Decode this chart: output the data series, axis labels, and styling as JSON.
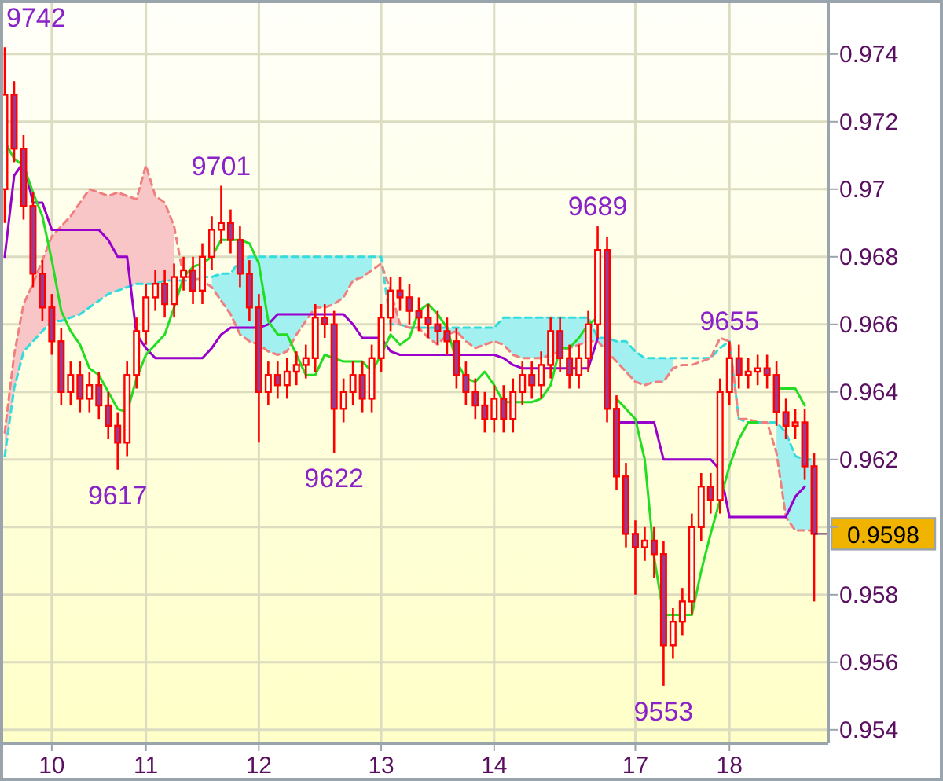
{
  "chart_data": {
    "type": "candlestick",
    "grid": true,
    "categories": [
      null,
      null,
      null,
      null,
      null,
      "10",
      null,
      null,
      null,
      null,
      null,
      null,
      null,
      null,
      null,
      "11",
      null,
      null,
      null,
      null,
      null,
      null,
      null,
      null,
      null,
      null,
      null,
      "12",
      null,
      null,
      null,
      null,
      null,
      null,
      null,
      null,
      null,
      null,
      null,
      null,
      "13",
      null,
      null,
      null,
      null,
      null,
      null,
      null,
      null,
      null,
      null,
      null,
      "14",
      null,
      null,
      null,
      null,
      null,
      null,
      null,
      null,
      null,
      null,
      null,
      null,
      null,
      null,
      "17",
      null,
      null,
      null,
      null,
      null,
      null,
      null,
      null,
      null,
      "18",
      null,
      null,
      null,
      null,
      null,
      null,
      null,
      null,
      null
    ],
    "ylim": [
      0.9536,
      0.9756
    ],
    "yticks": [
      0.954,
      0.956,
      0.958,
      {
        "value": 0.96,
        "label": null
      },
      0.962,
      0.964,
      0.966,
      0.968,
      0.97,
      0.972,
      0.974
    ],
    "annotations": [
      "9742",
      {
        "text": "9701",
        "y": 0.9701
      },
      {
        "text": "9617",
        "y": 0.9617
      },
      {
        "text": "9622",
        "y": 0.9622
      },
      {
        "text": "9689",
        "y": 0.9689
      },
      {
        "text": "9655",
        "y": 0.9655
      },
      {
        "text": "9553",
        "y": 0.9553
      },
      "0.9598"
    ],
    "series": [
      {
        "type": "line",
        "line_style": "dashed",
        "color": "#33dddd",
        "upper": [
          null,
          null,
          null,
          null,
          null,
          null,
          null,
          null,
          null,
          null,
          null,
          null,
          null,
          null,
          null,
          null,
          null,
          null,
          null,
          null,
          null,
          null,
          0.9674,
          0.9675,
          0.9675,
          0.9679,
          0.968,
          0.968,
          0.968,
          0.968,
          0.968,
          0.968,
          0.968,
          0.968,
          0.968,
          0.968,
          0.968,
          0.968,
          0.968,
          0.968,
          null,
          null,
          null,
          null,
          null,
          0.9659,
          0.9659,
          0.9659,
          0.9659,
          0.9659,
          0.9659,
          0.9659,
          0.9659,
          0.9662,
          0.9662,
          0.9662,
          0.9662,
          0.9662,
          0.9662,
          0.9662,
          0.9662,
          0.9662,
          0.9662,
          0.9656,
          0.9656,
          0.9655,
          0.9655,
          0.9652,
          0.965,
          0.965,
          0.965,
          0.965,
          null,
          null,
          null,
          null,
          null,
          null,
          null,
          null,
          null,
          null,
          0.9631,
          0.9628,
          0.9621,
          0.962,
          0.962
        ],
        "lower": [
          null,
          null,
          null,
          null,
          null,
          null,
          null,
          null,
          null,
          null,
          null,
          null,
          null,
          null,
          null,
          null,
          null,
          null,
          null,
          null,
          null,
          null,
          0.9671,
          0.9667,
          0.9663,
          0.9657,
          0.9655,
          0.9654,
          0.9652,
          0.9651,
          0.9652,
          0.9657,
          0.9661,
          0.9665,
          0.9665,
          0.9666,
          0.9668,
          0.9673,
          0.9674,
          0.9676,
          null,
          null,
          null,
          null,
          null,
          0.9656,
          0.9654,
          0.9657,
          0.9658,
          0.9655,
          0.9653,
          0.9654,
          0.9655,
          0.9654,
          0.9651,
          0.965,
          0.965,
          0.965,
          0.9651,
          0.9652,
          0.9653,
          0.9654,
          0.9655,
          0.9655,
          0.9652,
          0.9649,
          0.9646,
          0.9643,
          0.9642,
          0.9643,
          0.9643,
          0.9647,
          null,
          null,
          null,
          null,
          null,
          null,
          null,
          null,
          null,
          null,
          0.9622,
          0.9603,
          0.9599,
          0.9599,
          0.9599
        ],
        "values": [
          0.9621,
          0.9641,
          0.9652,
          0.9655,
          0.9658,
          0.9661,
          0.9661,
          0.9662,
          0.9663,
          0.9665,
          0.9667,
          0.9669,
          0.967,
          0.9671,
          0.9672,
          0.9672,
          0.9672,
          0.9673,
          0.9673,
          0.9673,
          0.9673,
          0.9674,
          0.9674,
          0.9675,
          0.9675,
          0.9679,
          0.968,
          0.968,
          0.968,
          0.968,
          0.968,
          0.968,
          0.968,
          0.968,
          0.968,
          0.968,
          0.968,
          0.968,
          0.968,
          0.968,
          0.968,
          0.966,
          0.966,
          0.9659,
          0.9659,
          0.9659,
          0.9659,
          0.9659,
          0.9659,
          0.9659,
          0.9659,
          0.9659,
          0.9659,
          0.9662,
          0.9662,
          0.9662,
          0.9662,
          0.9662,
          0.9662,
          0.9662,
          0.9662,
          0.9662,
          0.9662,
          0.9656,
          0.9656,
          0.9655,
          0.9655,
          0.9652,
          0.965,
          0.965,
          0.965,
          0.965,
          0.965,
          0.965,
          0.965,
          0.965,
          0.9653,
          0.9655,
          0.9632,
          0.9631,
          0.9631,
          0.9631,
          0.9631,
          0.9628,
          0.9621,
          0.962,
          0.962
        ]
      },
      {
        "type": "line",
        "line_style": "dashed",
        "color": "#f08080",
        "upper": [
          0.9628,
          0.9651,
          0.9666,
          0.9672,
          0.9679,
          0.9686,
          0.9689,
          0.9692,
          0.9696,
          0.97,
          0.9699,
          0.9698,
          0.9699,
          0.9698,
          0.9697,
          0.9707,
          0.9698,
          0.9696,
          0.9689,
          null,
          null,
          null,
          null,
          null,
          null,
          null,
          null,
          null,
          null,
          null,
          null,
          null,
          null,
          null,
          null,
          null,
          null,
          null,
          null,
          null,
          null,
          0.967,
          0.966,
          null,
          null,
          null,
          null,
          null,
          null,
          null,
          null,
          null,
          null,
          null,
          null,
          null,
          null,
          null,
          null,
          null,
          null,
          null,
          null,
          null,
          null,
          null,
          null,
          null,
          null,
          null,
          null,
          null,
          null,
          null,
          null,
          null,
          null,
          null,
          null,
          null,
          null,
          null,
          null,
          null,
          null,
          null,
          null
        ],
        "lower": [
          0.9621,
          0.9641,
          0.9652,
          0.9655,
          0.9658,
          0.9661,
          0.9661,
          0.9662,
          0.9663,
          0.9665,
          0.9667,
          0.9669,
          0.967,
          0.9671,
          0.9672,
          0.9672,
          0.9672,
          0.9673,
          0.9673,
          null,
          null,
          null,
          null,
          null,
          null,
          null,
          null,
          null,
          null,
          null,
          null,
          null,
          null,
          null,
          null,
          null,
          null,
          null,
          null,
          null,
          null,
          0.966,
          0.966,
          null,
          null,
          null,
          null,
          null,
          null,
          null,
          null,
          null,
          null,
          null,
          null,
          null,
          null,
          null,
          null,
          null,
          null,
          null,
          null,
          null,
          null,
          null,
          null,
          null,
          null,
          null,
          null,
          null,
          null,
          null,
          null,
          null,
          null,
          null,
          null,
          null,
          null,
          null,
          null,
          null,
          null,
          null,
          null
        ],
        "values": [
          0.9628,
          0.9651,
          0.9666,
          0.9672,
          0.9679,
          0.9686,
          0.9689,
          0.9692,
          0.9696,
          0.97,
          0.9699,
          0.9698,
          0.9699,
          0.9698,
          0.9697,
          0.9707,
          0.9698,
          0.9696,
          0.9689,
          0.9674,
          0.9674,
          0.9673,
          0.9671,
          0.9667,
          0.9663,
          0.9657,
          0.9655,
          0.9654,
          0.9652,
          0.9651,
          0.9652,
          0.9657,
          0.9661,
          0.9665,
          0.9665,
          0.9666,
          0.9668,
          0.9673,
          0.9674,
          0.9676,
          0.9678,
          0.967,
          0.966,
          0.9659,
          0.9659,
          0.9656,
          0.9654,
          0.9657,
          0.9658,
          0.9655,
          0.9653,
          0.9654,
          0.9655,
          0.9654,
          0.9651,
          0.965,
          0.965,
          0.965,
          0.9651,
          0.9652,
          0.9653,
          0.9654,
          0.9655,
          0.9655,
          0.9652,
          0.9649,
          0.9646,
          0.9643,
          0.9642,
          0.9643,
          0.9643,
          0.9647,
          0.9648,
          0.9648,
          0.9649,
          0.965,
          0.9656,
          0.9655,
          0.9632,
          0.9632,
          0.9631,
          0.9631,
          0.9622,
          0.9603,
          0.9599,
          0.9599,
          0.9599
        ]
      },
      {
        "type": "line",
        "color": "#9900cc",
        "values": [
          0.968,
          0.9704,
          0.9708,
          0.9696,
          0.9696,
          0.9688,
          0.9688,
          0.9688,
          0.9688,
          0.9688,
          0.9688,
          0.9685,
          0.968,
          0.968,
          0.9657,
          0.9653,
          0.965,
          0.965,
          0.965,
          0.965,
          0.965,
          0.965,
          0.9653,
          0.9657,
          0.9659,
          0.9659,
          0.9659,
          0.9659,
          0.966,
          0.9663,
          0.9663,
          0.9663,
          0.9663,
          0.9663,
          0.9663,
          0.9663,
          0.9663,
          0.966,
          0.9656,
          0.9656,
          0.9656,
          0.9652,
          0.9651,
          0.9651,
          0.9651,
          0.9651,
          0.9651,
          0.9651,
          0.9651,
          0.9651,
          0.9651,
          0.9651,
          0.9651,
          0.965,
          0.9648,
          0.9647,
          0.9647,
          0.9647,
          0.9647,
          0.9647,
          0.9647,
          0.9647,
          0.9647,
          0.9656,
          null,
          0.9631,
          0.9631,
          0.9631,
          0.9631,
          0.9631,
          0.962,
          0.962,
          0.962,
          0.962,
          0.962,
          0.962,
          0.9617,
          0.9603,
          0.9603,
          0.9603,
          0.9603,
          0.9603,
          0.9603,
          0.9603,
          0.9609,
          0.9612,
          null
        ]
      },
      {
        "type": "line",
        "color": "#22dd22",
        "values": [
          0.9714,
          0.9709,
          0.9707,
          0.9699,
          0.9692,
          0.9679,
          0.9664,
          0.9658,
          0.9654,
          0.9647,
          0.9645,
          0.964,
          0.9635,
          0.9634,
          0.9644,
          0.9651,
          0.9654,
          0.9657,
          0.9665,
          0.9674,
          0.9677,
          0.9678,
          0.968,
          0.9685,
          0.9685,
          0.9685,
          0.9684,
          0.9678,
          0.9661,
          0.9657,
          0.9657,
          0.9651,
          0.9645,
          0.9645,
          0.9651,
          0.965,
          0.9649,
          0.9649,
          0.9649,
          0.9646,
          0.9651,
          0.9657,
          0.9654,
          0.9656,
          0.9664,
          0.9666,
          0.9663,
          0.9659,
          0.9649,
          0.9644,
          0.9643,
          0.9646,
          0.9642,
          0.9637,
          0.9637,
          0.9637,
          0.9637,
          0.9638,
          0.9642,
          0.9653,
          0.9653,
          0.9656,
          0.966,
          0.9662,
          null,
          0.9638,
          0.9635,
          0.9632,
          0.962,
          0.9591,
          0.9574,
          0.9574,
          0.9574,
          0.9574,
          0.9587,
          0.9598,
          0.9608,
          0.9618,
          0.9626,
          0.9631,
          0.9631,
          null,
          0.9641,
          0.9641,
          0.9641,
          0.9636,
          null
        ]
      },
      {
        "color": "#ff0000",
        "ohlc": [
          [
            0.97,
            0.9742,
            0.969,
            0.9728
          ],
          [
            0.9728,
            0.9732,
            0.9708,
            0.9712
          ],
          [
            0.9712,
            0.9716,
            0.9691,
            0.9695
          ],
          [
            0.9695,
            0.9699,
            0.9671,
            0.9675
          ],
          [
            0.9675,
            0.9679,
            0.9661,
            0.9665
          ],
          [
            0.9665,
            0.9669,
            0.9651,
            0.9655
          ],
          [
            0.9655,
            0.9659,
            0.9636,
            0.964
          ],
          [
            0.964,
            0.9649,
            0.9636,
            0.9645
          ],
          [
            0.9645,
            0.9649,
            0.9634,
            0.9638
          ],
          [
            0.9638,
            0.9646,
            0.9634,
            0.9642
          ],
          [
            0.9642,
            0.9646,
            0.9632,
            0.9636
          ],
          [
            0.9636,
            0.964,
            0.9626,
            0.963
          ],
          [
            0.963,
            0.9634,
            0.9617,
            0.9625
          ],
          [
            0.9625,
            0.9649,
            0.9621,
            0.9645
          ],
          [
            0.9645,
            0.9662,
            0.9641,
            0.9658
          ],
          [
            0.9658,
            0.9672,
            0.9654,
            0.9668
          ],
          [
            0.9668,
            0.9676,
            0.9664,
            0.9672
          ],
          [
            0.9672,
            0.9676,
            0.9662,
            0.9666
          ],
          [
            0.9666,
            0.9678,
            0.9662,
            0.9674
          ],
          [
            0.9674,
            0.968,
            0.967,
            0.9676
          ],
          [
            0.9676,
            0.968,
            0.9666,
            0.967
          ],
          [
            0.967,
            0.9684,
            0.9666,
            0.968
          ],
          [
            0.968,
            0.9692,
            0.9676,
            0.9688
          ],
          [
            0.9688,
            0.9701,
            0.9684,
            0.969
          ],
          [
            0.969,
            0.9694,
            0.9681,
            0.9685
          ],
          [
            0.9685,
            0.9689,
            0.9671,
            0.9675
          ],
          [
            0.9675,
            0.9679,
            0.9661,
            0.9665
          ],
          [
            0.9665,
            0.9669,
            0.9625,
            0.964
          ],
          [
            0.964,
            0.9649,
            0.9636,
            0.9645
          ],
          [
            0.9645,
            0.9649,
            0.9638,
            0.9642
          ],
          [
            0.9642,
            0.965,
            0.9638,
            0.9646
          ],
          [
            0.9646,
            0.9652,
            0.9642,
            0.9648
          ],
          [
            0.9648,
            0.9654,
            0.9644,
            0.965
          ],
          [
            0.965,
            0.9666,
            0.9646,
            0.9662
          ],
          [
            0.9662,
            0.9666,
            0.9656,
            0.966
          ],
          [
            0.966,
            0.9664,
            0.9622,
            0.9635
          ],
          [
            0.9635,
            0.9644,
            0.9631,
            0.964
          ],
          [
            0.964,
            0.9649,
            0.9636,
            0.9645
          ],
          [
            0.9645,
            0.9649,
            0.9634,
            0.9638
          ],
          [
            0.9638,
            0.9654,
            0.9634,
            0.965
          ],
          [
            0.965,
            0.9666,
            0.9646,
            0.9662
          ],
          [
            0.9662,
            0.9674,
            0.9658,
            0.967
          ],
          [
            0.967,
            0.9674,
            0.9664,
            0.9668
          ],
          [
            0.9668,
            0.9672,
            0.966,
            0.9664
          ],
          [
            0.9664,
            0.9668,
            0.9658,
            0.9662
          ],
          [
            0.9662,
            0.9666,
            0.9656,
            0.966
          ],
          [
            0.966,
            0.9664,
            0.9654,
            0.9658
          ],
          [
            0.9658,
            0.9662,
            0.9651,
            0.9655
          ],
          [
            0.9655,
            0.9659,
            0.9641,
            0.9645
          ],
          [
            0.9645,
            0.9649,
            0.9636,
            0.964
          ],
          [
            0.964,
            0.9644,
            0.9632,
            0.9636
          ],
          [
            0.9636,
            0.964,
            0.9628,
            0.9632
          ],
          [
            0.9632,
            0.9642,
            0.9628,
            0.9638
          ],
          [
            0.9638,
            0.9642,
            0.9628,
            0.9632
          ],
          [
            0.9632,
            0.9644,
            0.9628,
            0.964
          ],
          [
            0.964,
            0.9649,
            0.9636,
            0.9645
          ],
          [
            0.9645,
            0.9649,
            0.9638,
            0.9642
          ],
          [
            0.9642,
            0.9652,
            0.9638,
            0.9648
          ],
          [
            0.9648,
            0.9662,
            0.9644,
            0.9658
          ],
          [
            0.9658,
            0.9662,
            0.9646,
            0.965
          ],
          [
            0.965,
            0.9654,
            0.9641,
            0.9645
          ],
          [
            0.9645,
            0.9654,
            0.9641,
            0.965
          ],
          [
            0.965,
            0.9664,
            0.9646,
            0.966
          ],
          [
            0.966,
            0.9689,
            0.9656,
            0.9682
          ],
          [
            0.9682,
            0.9686,
            0.9631,
            0.9635
          ],
          [
            0.9635,
            0.9639,
            0.9611,
            0.9615
          ],
          [
            0.9615,
            0.9619,
            0.9594,
            0.9598
          ],
          [
            0.9598,
            0.9602,
            0.958,
            0.9594
          ],
          [
            0.9594,
            0.96,
            0.959,
            0.9596
          ],
          [
            0.9596,
            0.96,
            0.9585,
            0.9592
          ],
          [
            0.9592,
            0.9596,
            0.9553,
            0.9565
          ],
          [
            0.9565,
            0.9576,
            0.9561,
            0.9572
          ],
          [
            0.9572,
            0.9582,
            0.9568,
            0.9578
          ],
          [
            0.9578,
            0.9604,
            0.9574,
            0.96
          ],
          [
            0.96,
            0.9616,
            0.9596,
            0.9612
          ],
          [
            0.9612,
            0.9616,
            0.9604,
            0.9608
          ],
          [
            0.9608,
            0.9644,
            0.9604,
            0.964
          ],
          [
            0.964,
            0.9655,
            0.9636,
            0.965
          ],
          [
            0.965,
            0.9654,
            0.9641,
            0.9645
          ],
          [
            0.9645,
            0.965,
            0.9641,
            0.9646
          ],
          [
            0.9646,
            0.9651,
            0.9642,
            0.9647
          ],
          [
            0.9647,
            0.9651,
            0.9641,
            0.9645
          ],
          [
            0.9645,
            0.9649,
            0.963,
            0.9634
          ],
          [
            0.9634,
            0.9638,
            0.9626,
            0.963
          ],
          [
            0.963,
            0.9635,
            0.9626,
            0.9631
          ],
          [
            0.9631,
            0.9635,
            0.9614,
            0.9618
          ],
          [
            0.9618,
            0.9622,
            0.9578,
            0.9598
          ]
        ]
      }
    ]
  }
}
